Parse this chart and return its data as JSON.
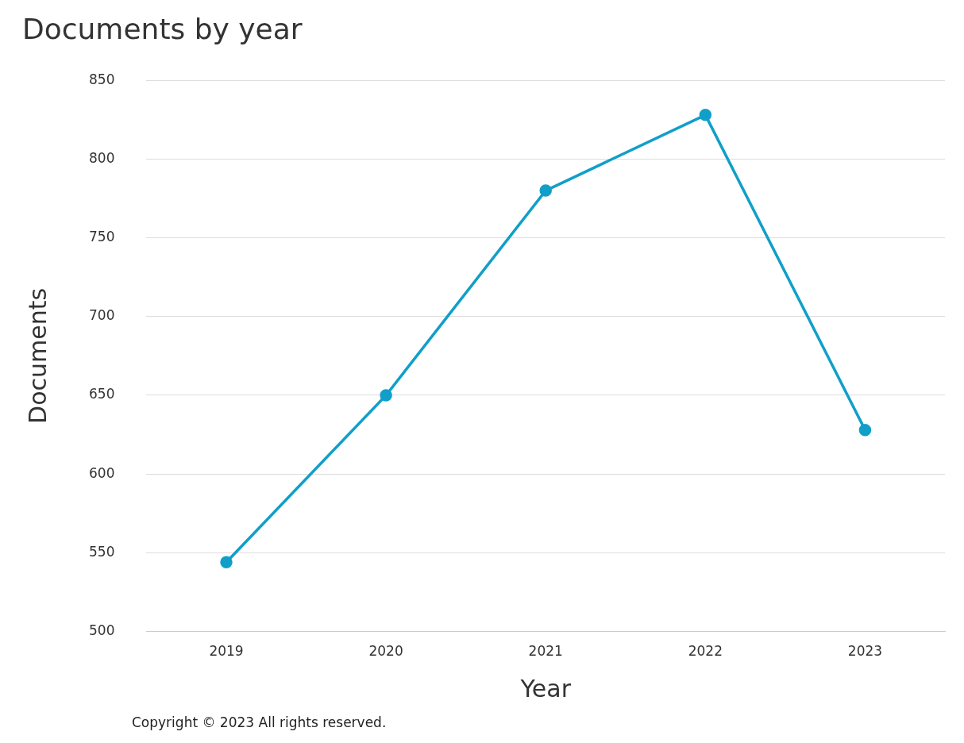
{
  "chart_data": {
    "type": "line",
    "title": "Documents by year",
    "xlabel": "Year",
    "ylabel": "Documents",
    "categories": [
      "2019",
      "2020",
      "2021",
      "2022",
      "2023"
    ],
    "series": [
      {
        "color": "#109fc9",
        "values": [
          544,
          650,
          780,
          828,
          628
        ]
      }
    ],
    "ylim": [
      500,
      850
    ],
    "yticks": [
      500,
      550,
      600,
      650,
      700,
      750,
      800,
      850
    ],
    "grid": "y",
    "legend": false,
    "marker": "circle",
    "line_style": "solid",
    "annotations": [
      "Copyright © 2023 All rights reserved."
    ]
  }
}
